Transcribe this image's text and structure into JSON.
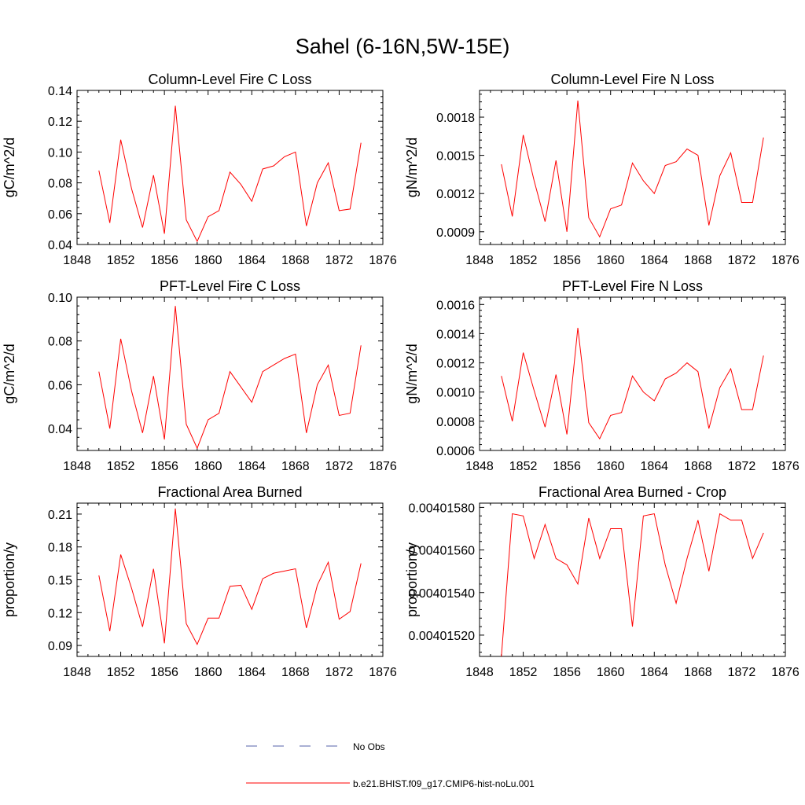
{
  "figure": {
    "title": "Sahel (6-16N,5W-15E)"
  },
  "legend": {
    "placement": "bottom-center",
    "entries": [
      {
        "label": "No Obs",
        "color": "#5560a8",
        "style": "dashed"
      },
      {
        "label": "b.e21.BHIST.f09_g17.CMIP6-hist-noLu.001",
        "color": "#ff0000",
        "style": "solid"
      }
    ]
  },
  "chart_data": [
    {
      "type": "line",
      "title": "Column-Level Fire C Loss",
      "ylabel": "gC/m^2/d",
      "xlim": [
        1848,
        1876
      ],
      "ylim": [
        0.04,
        0.14
      ],
      "xticks": [
        1848,
        1852,
        1856,
        1860,
        1864,
        1868,
        1872,
        1876
      ],
      "yticks": [
        0.04,
        0.06,
        0.08,
        0.1,
        0.12,
        0.14
      ],
      "ytick_labels": [
        "0.04",
        "0.06",
        "0.08",
        "0.10",
        "0.12",
        "0.14"
      ],
      "series": [
        {
          "color": "#ff0000",
          "x": [
            1850,
            1851,
            1852,
            1853,
            1854,
            1855,
            1856,
            1857,
            1858,
            1859,
            1860,
            1861,
            1862,
            1863,
            1864,
            1865,
            1866,
            1867,
            1868,
            1869,
            1870,
            1871,
            1872,
            1873,
            1874
          ],
          "values": [
            0.088,
            0.054,
            0.108,
            0.076,
            0.051,
            0.085,
            0.047,
            0.13,
            0.056,
            0.042,
            0.058,
            0.062,
            0.087,
            0.079,
            0.068,
            0.089,
            0.091,
            0.097,
            0.1,
            0.052,
            0.08,
            0.093,
            0.062,
            0.063,
            0.106
          ]
        }
      ]
    },
    {
      "type": "line",
      "title": "Column-Level Fire N Loss",
      "ylabel": "gN/m^2/d",
      "xlim": [
        1848,
        1876
      ],
      "ylim": [
        0.0008,
        0.00201
      ],
      "xticks": [
        1848,
        1852,
        1856,
        1860,
        1864,
        1868,
        1872,
        1876
      ],
      "yticks": [
        0.0009,
        0.0012,
        0.0015,
        0.0018
      ],
      "ytick_labels": [
        "0.0009",
        "0.0012",
        "0.0015",
        "0.0018"
      ],
      "series": [
        {
          "color": "#ff0000",
          "x": [
            1850,
            1851,
            1852,
            1853,
            1854,
            1855,
            1856,
            1857,
            1858,
            1859,
            1860,
            1861,
            1862,
            1863,
            1864,
            1865,
            1866,
            1867,
            1868,
            1869,
            1870,
            1871,
            1872,
            1873,
            1874
          ],
          "values": [
            0.00143,
            0.00102,
            0.00166,
            0.0013,
            0.00098,
            0.00146,
            0.0009,
            0.00193,
            0.00101,
            0.00086,
            0.00108,
            0.00111,
            0.00144,
            0.0013,
            0.0012,
            0.00142,
            0.00145,
            0.00155,
            0.0015,
            0.00095,
            0.00134,
            0.00152,
            0.00113,
            0.00113,
            0.00164
          ]
        }
      ]
    },
    {
      "type": "line",
      "title": "PFT-Level Fire C Loss",
      "ylabel": "gC/m^2/d",
      "xlim": [
        1848,
        1876
      ],
      "ylim": [
        0.03,
        0.1
      ],
      "xticks": [
        1848,
        1852,
        1856,
        1860,
        1864,
        1868,
        1872,
        1876
      ],
      "yticks": [
        0.04,
        0.06,
        0.08,
        0.1
      ],
      "ytick_labels": [
        "0.04",
        "0.06",
        "0.08",
        "0.10"
      ],
      "series": [
        {
          "color": "#ff0000",
          "x": [
            1850,
            1851,
            1852,
            1853,
            1854,
            1855,
            1856,
            1857,
            1858,
            1859,
            1860,
            1861,
            1862,
            1863,
            1864,
            1865,
            1866,
            1867,
            1868,
            1869,
            1870,
            1871,
            1872,
            1873,
            1874
          ],
          "values": [
            0.066,
            0.04,
            0.081,
            0.057,
            0.038,
            0.064,
            0.035,
            0.096,
            0.042,
            0.031,
            0.044,
            0.047,
            0.066,
            0.059,
            0.052,
            0.066,
            0.069,
            0.072,
            0.074,
            0.038,
            0.06,
            0.069,
            0.046,
            0.047,
            0.078
          ]
        }
      ]
    },
    {
      "type": "line",
      "title": "PFT-Level Fire N Loss",
      "ylabel": "gN/m^2/d",
      "xlim": [
        1848,
        1876
      ],
      "ylim": [
        0.0006,
        0.00165
      ],
      "xticks": [
        1848,
        1852,
        1856,
        1860,
        1864,
        1868,
        1872,
        1876
      ],
      "yticks": [
        0.0006,
        0.0008,
        0.001,
        0.0012,
        0.0014,
        0.0016
      ],
      "ytick_labels": [
        "0.0006",
        "0.0008",
        "0.0010",
        "0.0012",
        "0.0014",
        "0.0016"
      ],
      "series": [
        {
          "color": "#ff0000",
          "x": [
            1850,
            1851,
            1852,
            1853,
            1854,
            1855,
            1856,
            1857,
            1858,
            1859,
            1860,
            1861,
            1862,
            1863,
            1864,
            1865,
            1866,
            1867,
            1868,
            1869,
            1870,
            1871,
            1872,
            1873,
            1874
          ],
          "values": [
            0.00111,
            0.0008,
            0.00127,
            0.00101,
            0.00076,
            0.00112,
            0.00071,
            0.00144,
            0.00079,
            0.00068,
            0.00084,
            0.00086,
            0.00111,
            0.001,
            0.00094,
            0.00109,
            0.00113,
            0.0012,
            0.00114,
            0.00075,
            0.00103,
            0.00116,
            0.00088,
            0.00088,
            0.00125
          ]
        }
      ]
    },
    {
      "type": "line",
      "title": "Fractional Area Burned",
      "ylabel": "proportion/y",
      "xlim": [
        1848,
        1876
      ],
      "ylim": [
        0.08,
        0.22
      ],
      "xticks": [
        1848,
        1852,
        1856,
        1860,
        1864,
        1868,
        1872,
        1876
      ],
      "yticks": [
        0.09,
        0.12,
        0.15,
        0.18,
        0.21
      ],
      "ytick_labels": [
        "0.09",
        "0.12",
        "0.15",
        "0.18",
        "0.21"
      ],
      "series": [
        {
          "color": "#ff0000",
          "x": [
            1850,
            1851,
            1852,
            1853,
            1854,
            1855,
            1856,
            1857,
            1858,
            1859,
            1860,
            1861,
            1862,
            1863,
            1864,
            1865,
            1866,
            1867,
            1868,
            1869,
            1870,
            1871,
            1872,
            1873,
            1874
          ],
          "values": [
            0.154,
            0.103,
            0.173,
            0.142,
            0.107,
            0.16,
            0.092,
            0.215,
            0.11,
            0.091,
            0.115,
            0.115,
            0.144,
            0.145,
            0.123,
            0.151,
            0.156,
            0.158,
            0.16,
            0.106,
            0.145,
            0.166,
            0.114,
            0.121,
            0.165
          ]
        }
      ]
    },
    {
      "type": "line",
      "title": "Fractional Area Burned - Crop",
      "ylabel": "proportion/y",
      "xlim": [
        1848,
        1876
      ],
      "ylim": [
        0.0040151,
        0.00401582
      ],
      "xticks": [
        1848,
        1852,
        1856,
        1860,
        1864,
        1868,
        1872,
        1876
      ],
      "yticks": [
        0.0040152,
        0.0040154,
        0.0040156,
        0.0040158
      ],
      "ytick_labels": [
        "0.00401520",
        "0.00401540",
        "0.00401560",
        "0.00401580"
      ],
      "series": [
        {
          "color": "#ff0000",
          "x": [
            1850,
            1851,
            1852,
            1853,
            1854,
            1855,
            1856,
            1857,
            1858,
            1859,
            1860,
            1861,
            1862,
            1863,
            1864,
            1865,
            1866,
            1867,
            1868,
            1869,
            1870,
            1871,
            1872,
            1873,
            1874
          ],
          "values": [
            0.0040151,
            0.00401577,
            0.00401576,
            0.00401556,
            0.00401572,
            0.00401556,
            0.00401553,
            0.00401544,
            0.00401575,
            0.00401556,
            0.0040157,
            0.0040157,
            0.00401524,
            0.00401576,
            0.00401577,
            0.00401553,
            0.00401535,
            0.00401556,
            0.00401574,
            0.0040155,
            0.00401577,
            0.00401574,
            0.00401574,
            0.00401556,
            0.00401568
          ]
        }
      ]
    }
  ]
}
